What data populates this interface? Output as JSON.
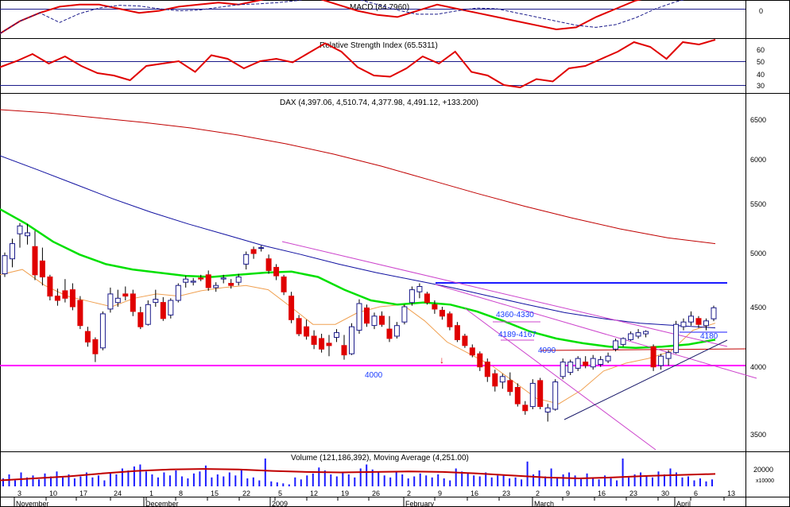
{
  "panels": {
    "macd": {
      "title": "MACD (84.7960)",
      "ticks": [
        "0"
      ]
    },
    "rsi": {
      "title": "Relative Strength Index (65.5311)",
      "ticks": [
        "60",
        "50",
        "40",
        "30"
      ]
    },
    "price": {
      "title": "DAX (4,397.06, 4,510.74, 4,377.98, 4,491.12, +133.200)",
      "ticks": [
        "6500",
        "6000",
        "5500",
        "5000",
        "4500",
        "4000",
        "3500"
      ]
    },
    "volume": {
      "title": "Volume (121,186,392), Moving Average (4,251.00)",
      "ticks": [
        "20000"
      ],
      "unit": "x10000"
    }
  },
  "annotations": {
    "level_4000": "4000",
    "zone_upper": "4360-4330",
    "zone_lower": "4189-4167",
    "level_4090": "4090",
    "level_4180": "4180",
    "arrow": "↓"
  },
  "x_axis": {
    "months": [
      "November",
      "December",
      "2009",
      "February",
      "March",
      "April"
    ],
    "days": [
      "3",
      "10",
      "17",
      "24",
      "1",
      "8",
      "15",
      "22",
      "5",
      "12",
      "19",
      "26",
      "2",
      "9",
      "16",
      "23",
      "2",
      "9",
      "16",
      "23",
      "30",
      "6",
      "13"
    ]
  },
  "colors": {
    "up_candle": "#1a1aff",
    "down_candle": "#e00000",
    "ma_fast": "#f0a050",
    "ma_mid": "#00e000",
    "ma_slow": "#1010a0",
    "ma_long": "#c00000",
    "support": "#ff00ff",
    "resistance": "#1a1aff",
    "trend": "#cc44cc",
    "macd": "#e00000",
    "rsi": "#e00000",
    "volume": "#1a1aff"
  },
  "chart_data": [
    {
      "type": "line",
      "title": "MACD (84.7960)",
      "series": [
        {
          "name": "MACD",
          "values": [
            -120,
            -60,
            -20,
            10,
            20,
            20,
            0,
            -20,
            -10,
            10,
            20,
            30,
            20,
            40,
            60,
            70,
            50,
            20,
            -10,
            -30,
            -40,
            -10,
            20,
            0,
            -20,
            -40,
            -60,
            -80,
            -100,
            -90,
            -40,
            0,
            40,
            60,
            70,
            80,
            85
          ]
        }
      ]
    },
    {
      "type": "line",
      "title": "Relative Strength Index (65.5311)",
      "ylim": [
        20,
        70
      ],
      "series": [
        {
          "name": "RSI",
          "values": [
            45,
            50,
            56,
            48,
            54,
            46,
            40,
            38,
            34,
            46,
            48,
            50,
            41,
            55,
            52,
            44,
            50,
            52,
            49,
            57,
            65,
            58,
            45,
            38,
            37,
            44,
            54,
            48,
            58,
            41,
            38,
            30,
            28,
            35,
            33,
            44,
            46,
            52,
            58,
            66,
            62,
            52,
            66,
            64,
            68
          ]
        }
      ]
    },
    {
      "type": "candlestick",
      "title": "DAX (4,397.06, 4,510.74, 4,377.98, 4,491.12, +133.200)",
      "ylim": [
        3400,
        6700
      ],
      "last": {
        "open": 4397.06,
        "high": 4510.74,
        "low": 4377.98,
        "close": 4491.12,
        "change": 133.2
      },
      "candles": [
        {
          "o": 4810,
          "h": 5010,
          "l": 4780,
          "c": 4980
        },
        {
          "o": 4950,
          "h": 5150,
          "l": 4870,
          "c": 5100
        },
        {
          "o": 5200,
          "h": 5310,
          "l": 5060,
          "c": 5280
        },
        {
          "o": 5180,
          "h": 5300,
          "l": 5090,
          "c": 5210
        },
        {
          "o": 5070,
          "h": 5230,
          "l": 4750,
          "c": 4800
        },
        {
          "o": 4930,
          "h": 5060,
          "l": 4700,
          "c": 4780
        },
        {
          "o": 4780,
          "h": 4800,
          "l": 4560,
          "c": 4600
        },
        {
          "o": 4600,
          "h": 4670,
          "l": 4510,
          "c": 4560
        },
        {
          "o": 4650,
          "h": 4760,
          "l": 4540,
          "c": 4580
        },
        {
          "o": 4660,
          "h": 4720,
          "l": 4470,
          "c": 4500
        },
        {
          "o": 4560,
          "h": 4600,
          "l": 4310,
          "c": 4340
        },
        {
          "o": 4290,
          "h": 4330,
          "l": 4160,
          "c": 4200
        },
        {
          "o": 4220,
          "h": 4240,
          "l": 4030,
          "c": 4100
        },
        {
          "o": 4150,
          "h": 4460,
          "l": 4130,
          "c": 4440
        },
        {
          "o": 4480,
          "h": 4680,
          "l": 4450,
          "c": 4620
        },
        {
          "o": 4540,
          "h": 4660,
          "l": 4500,
          "c": 4580
        },
        {
          "o": 4620,
          "h": 4690,
          "l": 4560,
          "c": 4600
        },
        {
          "o": 4620,
          "h": 4660,
          "l": 4420,
          "c": 4460
        },
        {
          "o": 4450,
          "h": 4500,
          "l": 4310,
          "c": 4330
        },
        {
          "o": 4350,
          "h": 4560,
          "l": 4340,
          "c": 4520
        },
        {
          "o": 4540,
          "h": 4660,
          "l": 4500,
          "c": 4570
        },
        {
          "o": 4540,
          "h": 4590,
          "l": 4380,
          "c": 4400
        },
        {
          "o": 4430,
          "h": 4580,
          "l": 4400,
          "c": 4560
        },
        {
          "o": 4560,
          "h": 4720,
          "l": 4540,
          "c": 4700
        },
        {
          "o": 4730,
          "h": 4790,
          "l": 4680,
          "c": 4760
        },
        {
          "o": 4730,
          "h": 4770,
          "l": 4700,
          "c": 4740
        },
        {
          "o": 4770,
          "h": 4800,
          "l": 4740,
          "c": 4760
        },
        {
          "o": 4800,
          "h": 4840,
          "l": 4650,
          "c": 4680
        },
        {
          "o": 4680,
          "h": 4730,
          "l": 4640,
          "c": 4700
        },
        {
          "o": 4760,
          "h": 4800,
          "l": 4720,
          "c": 4770
        },
        {
          "o": 4720,
          "h": 4760,
          "l": 4670,
          "c": 4700
        },
        {
          "o": 4730,
          "h": 4810,
          "l": 4700,
          "c": 4780
        },
        {
          "o": 4900,
          "h": 5020,
          "l": 4850,
          "c": 4990
        },
        {
          "o": 5040,
          "h": 5070,
          "l": 4950,
          "c": 5000
        },
        {
          "o": 5060,
          "h": 5080,
          "l": 5020,
          "c": 5060
        },
        {
          "o": 4950,
          "h": 4990,
          "l": 4810,
          "c": 4840
        },
        {
          "o": 4870,
          "h": 4900,
          "l": 4750,
          "c": 4790
        },
        {
          "o": 4780,
          "h": 4800,
          "l": 4610,
          "c": 4640
        },
        {
          "o": 4600,
          "h": 4640,
          "l": 4360,
          "c": 4390
        },
        {
          "o": 4400,
          "h": 4430,
          "l": 4250,
          "c": 4270
        },
        {
          "o": 4330,
          "h": 4390,
          "l": 4220,
          "c": 4250
        },
        {
          "o": 4250,
          "h": 4300,
          "l": 4140,
          "c": 4180
        },
        {
          "o": 4230,
          "h": 4270,
          "l": 4110,
          "c": 4140
        },
        {
          "o": 4190,
          "h": 4260,
          "l": 4080,
          "c": 4170
        },
        {
          "o": 4240,
          "h": 4310,
          "l": 4200,
          "c": 4280
        },
        {
          "o": 4170,
          "h": 4260,
          "l": 4050,
          "c": 4090
        },
        {
          "o": 4100,
          "h": 4360,
          "l": 4090,
          "c": 4330
        },
        {
          "o": 4300,
          "h": 4570,
          "l": 4270,
          "c": 4530
        },
        {
          "o": 4490,
          "h": 4520,
          "l": 4330,
          "c": 4360
        },
        {
          "o": 4340,
          "h": 4450,
          "l": 4310,
          "c": 4420
        },
        {
          "o": 4420,
          "h": 4460,
          "l": 4330,
          "c": 4350
        },
        {
          "o": 4310,
          "h": 4420,
          "l": 4200,
          "c": 4230
        },
        {
          "o": 4250,
          "h": 4370,
          "l": 4230,
          "c": 4340
        },
        {
          "o": 4370,
          "h": 4520,
          "l": 4350,
          "c": 4500
        },
        {
          "o": 4540,
          "h": 4690,
          "l": 4510,
          "c": 4660
        },
        {
          "o": 4640,
          "h": 4720,
          "l": 4580,
          "c": 4690
        },
        {
          "o": 4620,
          "h": 4640,
          "l": 4520,
          "c": 4540
        },
        {
          "o": 4520,
          "h": 4560,
          "l": 4440,
          "c": 4480
        },
        {
          "o": 4470,
          "h": 4500,
          "l": 4390,
          "c": 4420
        },
        {
          "o": 4440,
          "h": 4460,
          "l": 4300,
          "c": 4330
        },
        {
          "o": 4340,
          "h": 4370,
          "l": 4200,
          "c": 4220
        },
        {
          "o": 4250,
          "h": 4270,
          "l": 4150,
          "c": 4170
        },
        {
          "o": 4150,
          "h": 4180,
          "l": 4070,
          "c": 4090
        },
        {
          "o": 4100,
          "h": 4120,
          "l": 3960,
          "c": 3990
        },
        {
          "o": 4030,
          "h": 4060,
          "l": 3880,
          "c": 3920
        },
        {
          "o": 3940,
          "h": 3970,
          "l": 3810,
          "c": 3850
        },
        {
          "o": 3880,
          "h": 3940,
          "l": 3830,
          "c": 3920
        },
        {
          "o": 3890,
          "h": 3950,
          "l": 3780,
          "c": 3810
        },
        {
          "o": 3840,
          "h": 3870,
          "l": 3700,
          "c": 3720
        },
        {
          "o": 3710,
          "h": 3740,
          "l": 3640,
          "c": 3670
        },
        {
          "o": 3700,
          "h": 3900,
          "l": 3680,
          "c": 3870
        },
        {
          "o": 3890,
          "h": 3910,
          "l": 3680,
          "c": 3700
        },
        {
          "o": 3660,
          "h": 3720,
          "l": 3590,
          "c": 3690
        },
        {
          "o": 3680,
          "h": 3900,
          "l": 3670,
          "c": 3880
        },
        {
          "o": 3920,
          "h": 4060,
          "l": 3900,
          "c": 4030
        },
        {
          "o": 3950,
          "h": 4050,
          "l": 3930,
          "c": 4030
        },
        {
          "o": 3980,
          "h": 4080,
          "l": 3960,
          "c": 4060
        },
        {
          "o": 4030,
          "h": 4080,
          "l": 3980,
          "c": 4000
        },
        {
          "o": 3990,
          "h": 4090,
          "l": 3970,
          "c": 4060
        },
        {
          "o": 4010,
          "h": 4080,
          "l": 3990,
          "c": 4050
        },
        {
          "o": 4040,
          "h": 4110,
          "l": 4020,
          "c": 4080
        },
        {
          "o": 4140,
          "h": 4230,
          "l": 4120,
          "c": 4210
        },
        {
          "o": 4180,
          "h": 4240,
          "l": 4160,
          "c": 4230
        },
        {
          "o": 4220,
          "h": 4290,
          "l": 4210,
          "c": 4270
        },
        {
          "o": 4250,
          "h": 4310,
          "l": 4230,
          "c": 4280
        },
        {
          "o": 4270,
          "h": 4300,
          "l": 4240,
          "c": 4290
        },
        {
          "o": 4160,
          "h": 4180,
          "l": 3960,
          "c": 3990
        },
        {
          "o": 4000,
          "h": 4100,
          "l": 3970,
          "c": 4080
        },
        {
          "o": 4060,
          "h": 4130,
          "l": 4000,
          "c": 4110
        },
        {
          "o": 4110,
          "h": 4380,
          "l": 4100,
          "c": 4350
        },
        {
          "o": 4330,
          "h": 4400,
          "l": 4300,
          "c": 4370
        },
        {
          "o": 4370,
          "h": 4460,
          "l": 4340,
          "c": 4420
        },
        {
          "o": 4400,
          "h": 4420,
          "l": 4320,
          "c": 4350
        },
        {
          "o": 4340,
          "h": 4400,
          "l": 4300,
          "c": 4380
        },
        {
          "o": 4397.06,
          "h": 4510.74,
          "l": 4377.98,
          "c": 4491.12
        }
      ],
      "moving_averages": [
        {
          "name": "MA fast",
          "values": [
            4800,
            4850,
            4700,
            4600,
            4550,
            4500,
            4580,
            4620,
            4600,
            4650,
            4680,
            4700,
            4660,
            4500,
            4350,
            4350,
            4450,
            4500,
            4520,
            4380,
            4200,
            4100,
            4000,
            3880,
            3760,
            3720,
            3820,
            3960,
            4020,
            4060,
            4120,
            4300,
            4360
          ]
        },
        {
          "name": "MA mid",
          "values": [
            5450,
            5300,
            5120,
            4990,
            4900,
            4850,
            4820,
            4790,
            4780,
            4800,
            4820,
            4830,
            4780,
            4660,
            4560,
            4520,
            4540,
            4520,
            4460,
            4380,
            4290,
            4230,
            4190,
            4160,
            4150,
            4160,
            4180,
            4220
          ]
        },
        {
          "name": "MA slow",
          "values": [
            6040,
            5880,
            5720,
            5560,
            5420,
            5300,
            5190,
            5080,
            4990,
            4900,
            4820,
            4750,
            4680,
            4600,
            4520,
            4450,
            4400,
            4360,
            4340,
            4320
          ]
        },
        {
          "name": "MA long",
          "values": [
            6620,
            6580,
            6520,
            6460,
            6390,
            6300,
            6190,
            6060,
            5920,
            5770,
            5620,
            5480,
            5360,
            5250,
            5160,
            5100
          ]
        }
      ],
      "levels": [
        4000,
        4700,
        4280,
        4120
      ]
    },
    {
      "type": "bar",
      "title": "Volume (121,186,392), Moving Average (4,251.00)",
      "unit": "x10000",
      "ylim": [
        0,
        30000
      ],
      "values": [
        8000,
        12000,
        6000,
        14000,
        9000,
        11000,
        7000,
        13000,
        10000,
        15000,
        9000,
        12000,
        8000,
        10000,
        14000,
        9000,
        11000,
        6000,
        13000,
        12000,
        18000,
        16000,
        20000,
        22000,
        15000,
        12000,
        9000,
        14000,
        11000,
        16000,
        10000,
        8000,
        13000,
        15000,
        21000,
        9000,
        12000,
        10000,
        14000,
        11000,
        17000,
        8000,
        9000,
        6000,
        28000,
        5000,
        4000,
        3000,
        2000,
        9000,
        7000,
        11000,
        13000,
        19000,
        16000,
        12000,
        10000,
        14000,
        12000,
        9000,
        18000,
        22000,
        17000,
        15000,
        11000,
        9000,
        14000,
        12000,
        8000,
        10000,
        13000,
        11000,
        9000,
        12000,
        8000,
        6000,
        18000,
        15000,
        13000,
        11000,
        10000,
        14000,
        9000,
        11000,
        12000,
        8000,
        9000,
        7000,
        25000,
        12000,
        16000,
        10000,
        18000,
        9000,
        12000,
        14000,
        11000,
        8000,
        13000,
        9000,
        7000,
        11000,
        8000,
        6000,
        28000,
        9000,
        12000,
        14000,
        10000,
        9000,
        15000,
        12000,
        18000,
        14000,
        9000,
        10000,
        6000,
        8000,
        5000,
        7000
      ],
      "ma": [
        6000,
        8000,
        10000,
        13000,
        15500,
        17000,
        17500,
        17000,
        15500,
        14500,
        14000,
        14500,
        15000,
        14500,
        13000,
        11000,
        9000,
        8000,
        9000,
        10500,
        11500,
        12500
      ]
    }
  ]
}
